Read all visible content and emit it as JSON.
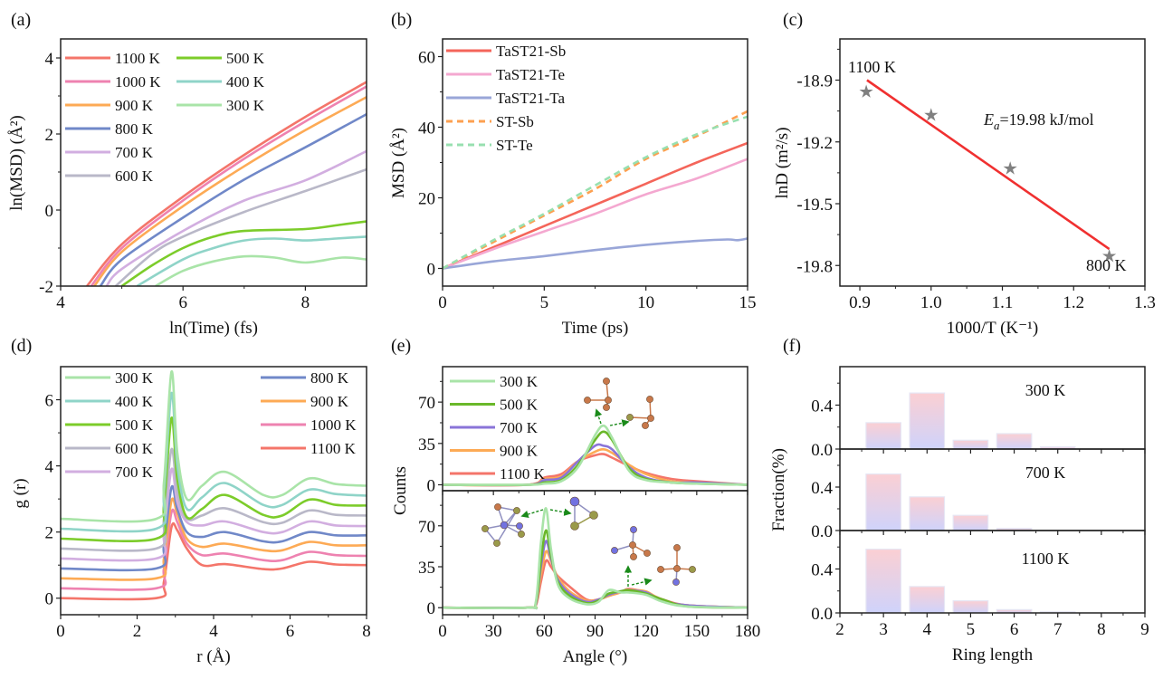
{
  "chart_data": [
    {
      "panel": "(a)",
      "type": "line",
      "xlabel": "ln(Time) (fs)",
      "ylabel": "ln(MSD) (Å²)",
      "xlim": [
        4,
        9
      ],
      "ylim": [
        -2,
        4.5
      ],
      "xticks": [
        4,
        6,
        8
      ],
      "xtick_labels": [
        "4",
        "6",
        "8"
      ],
      "yticks": [
        -2,
        0,
        2,
        4
      ],
      "ytick_labels": [
        "-2",
        "0",
        "2",
        "4"
      ],
      "legend": "top-left, two columns",
      "series": [
        {
          "name": "1100 K",
          "color": "#f4756a",
          "x": [
            4.43,
            5,
            6,
            7,
            8,
            9
          ],
          "y": [
            -2,
            -0.9,
            0.35,
            1.45,
            2.45,
            3.37
          ]
        },
        {
          "name": "1000 K",
          "color": "#ee82b0",
          "x": [
            4.5,
            5,
            6,
            7,
            8,
            9
          ],
          "y": [
            -2,
            -1.0,
            0.25,
            1.35,
            2.33,
            3.25
          ]
        },
        {
          "name": "900 K",
          "color": "#fdaa55",
          "x": [
            4.55,
            5,
            6,
            7,
            8,
            9
          ],
          "y": [
            -2,
            -1.1,
            0.1,
            1.15,
            2.1,
            2.97
          ]
        },
        {
          "name": "800 K",
          "color": "#7088c8",
          "x": [
            4.65,
            5,
            6,
            7,
            8,
            9
          ],
          "y": [
            -2,
            -1.3,
            -0.2,
            0.8,
            1.65,
            2.52
          ]
        },
        {
          "name": "700 K",
          "color": "#d2aee0",
          "x": [
            4.75,
            5,
            6,
            7,
            8,
            9
          ],
          "y": [
            -2,
            -1.55,
            -0.55,
            0.25,
            0.78,
            1.55
          ]
        },
        {
          "name": "600 K",
          "color": "#b9b8c8",
          "x": [
            4.9,
            5.5,
            6,
            7,
            8,
            9
          ],
          "y": [
            -2,
            -1.15,
            -0.7,
            -0.05,
            0.5,
            1.07
          ]
        },
        {
          "name": "500 K",
          "color": "#7ccc2a",
          "x": [
            5.0,
            5.5,
            6,
            6.5,
            7,
            8,
            8.6,
            9
          ],
          "y": [
            -2,
            -1.45,
            -1.0,
            -0.7,
            -0.55,
            -0.5,
            -0.38,
            -0.3
          ]
        },
        {
          "name": "400 K",
          "color": "#8fd4c8",
          "x": [
            5.25,
            6,
            6.5,
            7,
            7.5,
            8,
            8.5,
            9
          ],
          "y": [
            -2,
            -1.3,
            -1.0,
            -0.8,
            -0.75,
            -0.8,
            -0.75,
            -0.7
          ]
        },
        {
          "name": "300 K",
          "color": "#a9e4a8",
          "x": [
            5.55,
            6,
            6.5,
            7,
            7.5,
            8,
            8.6,
            9
          ],
          "y": [
            -2,
            -1.6,
            -1.35,
            -1.22,
            -1.25,
            -1.38,
            -1.25,
            -1.3
          ]
        }
      ]
    },
    {
      "panel": "(b)",
      "type": "line",
      "xlabel": "Time (ps)",
      "ylabel": "MSD (Å²)",
      "xlim": [
        0,
        15
      ],
      "ylim": [
        -5,
        65
      ],
      "xticks": [
        0,
        5,
        10,
        15
      ],
      "xtick_labels": [
        "0",
        "5",
        "10",
        "15"
      ],
      "yticks": [
        0,
        20,
        40,
        60
      ],
      "ytick_labels": [
        "0",
        "20",
        "40",
        "60"
      ],
      "legend": "top-left",
      "series": [
        {
          "name": "TaST21-Sb",
          "color": "#f4655a",
          "dashed": false,
          "x": [
            0,
            2.5,
            5,
            7.5,
            10,
            12.5,
            15
          ],
          "y": [
            0,
            6,
            12,
            18,
            24,
            30,
            35.5
          ]
        },
        {
          "name": "TaST21-Te",
          "color": "#f4a8d0",
          "dashed": false,
          "x": [
            0,
            2.5,
            5,
            7.5,
            10,
            12.5,
            15
          ],
          "y": [
            0,
            5.5,
            10.5,
            15.5,
            21,
            25.5,
            31
          ]
        },
        {
          "name": "TaST21-Ta",
          "color": "#99a6d8",
          "dashed": false,
          "x": [
            0,
            2.5,
            5,
            7.5,
            10,
            12.5,
            14,
            14.5,
            15
          ],
          "y": [
            0,
            2,
            3.5,
            5.2,
            6.7,
            7.8,
            8.2,
            8,
            8.5
          ]
        },
        {
          "name": "ST-Sb",
          "color": "#fda050",
          "dashed": true,
          "x": [
            0,
            2.5,
            5,
            7.5,
            10,
            12.5,
            15
          ],
          "y": [
            0,
            7.5,
            15,
            22.5,
            31,
            37.5,
            44.5
          ]
        },
        {
          "name": "ST-Te",
          "color": "#98e0b0",
          "dashed": true,
          "x": [
            0,
            2.5,
            5,
            7.5,
            10,
            12.5,
            15
          ],
          "y": [
            0,
            8,
            15.5,
            23.5,
            31.5,
            38,
            43
          ]
        }
      ]
    },
    {
      "panel": "(c)",
      "type": "scatter",
      "xlabel": "1000/T (K⁻¹)",
      "ylabel": "lnD (m²/s)",
      "xlim": [
        0.872,
        1.3
      ],
      "ylim": [
        -19.9,
        -18.7
      ],
      "xticks": [
        0.9,
        1.0,
        1.1,
        1.2,
        1.3
      ],
      "xtick_labels": [
        "0.9",
        "1.0",
        "1.1",
        "1.2",
        "1.3"
      ],
      "yticks": [
        -18.9,
        -19.2,
        -19.5,
        -19.8
      ],
      "ytick_labels": [
        "-18.9",
        "-19.2",
        "-19.5",
        "-19.8"
      ],
      "points": {
        "color": "#808080",
        "marker": "star",
        "x": [
          0.909,
          1.0,
          1.111,
          1.25
        ],
        "y": [
          -18.957,
          -19.07,
          -19.33,
          -19.755
        ]
      },
      "fit": {
        "color": "#f03030",
        "x": [
          0.91,
          1.25
        ],
        "y": [
          -18.9,
          -19.72
        ]
      },
      "annotations": {
        "high": "1100 K",
        "low": "800 K",
        "ea_symbol": "E",
        "ea_sub": "a",
        "ea_text": "=19.98 kJ/mol"
      }
    },
    {
      "panel": "(d)",
      "type": "line",
      "xlabel": "r (Å)",
      "ylabel": "g (r)",
      "xlim": [
        0,
        8
      ],
      "ylim": [
        -0.5,
        7
      ],
      "xticks": [
        0,
        2,
        4,
        6,
        8
      ],
      "xtick_labels": [
        "0",
        "2",
        "4",
        "6",
        "8"
      ],
      "yticks": [
        0,
        2,
        4,
        6
      ],
      "ytick_labels": [
        "0",
        "2",
        "4",
        "6"
      ],
      "legend": "top, two columns",
      "x": [
        0,
        2.5,
        2.7,
        2.9,
        3.05,
        3.3,
        3.7,
        4.3,
        5.3,
        5.8,
        6.5,
        7.2,
        8
      ],
      "series": [
        {
          "name": "300 K",
          "color": "#a9e4a8",
          "y": [
            2.4,
            2.4,
            3.5,
            6.85,
            4.4,
            3.0,
            3.4,
            3.82,
            3.12,
            3.12,
            3.62,
            3.45,
            3.4
          ]
        },
        {
          "name": "400 K",
          "color": "#8fd4c8",
          "y": [
            2.1,
            2.1,
            3.2,
            6.2,
            4.0,
            2.7,
            3.05,
            3.48,
            2.82,
            2.82,
            3.28,
            3.15,
            3.1
          ]
        },
        {
          "name": "500 K",
          "color": "#7ccc2a",
          "y": [
            1.8,
            1.8,
            2.8,
            5.45,
            3.6,
            2.45,
            2.7,
            3.12,
            2.52,
            2.5,
            2.98,
            2.82,
            2.8
          ]
        },
        {
          "name": "600 K",
          "color": "#b9b8c8",
          "y": [
            1.5,
            1.5,
            2.4,
            4.5,
            3.2,
            2.4,
            2.5,
            2.72,
            2.3,
            2.28,
            2.65,
            2.52,
            2.5
          ]
        },
        {
          "name": "700 K",
          "color": "#d2aee0",
          "y": [
            1.2,
            1.2,
            2.0,
            3.9,
            2.9,
            2.3,
            2.2,
            2.32,
            2.0,
            2.0,
            2.32,
            2.2,
            2.18
          ]
        },
        {
          "name": "800 K",
          "color": "#7088c8",
          "y": [
            0.9,
            0.9,
            1.6,
            3.35,
            2.7,
            2.0,
            1.85,
            2.0,
            1.72,
            1.72,
            2.0,
            1.9,
            1.9
          ]
        },
        {
          "name": "900 K",
          "color": "#fdaa55",
          "y": [
            0.6,
            0.6,
            1.2,
            2.95,
            2.55,
            1.8,
            1.55,
            1.65,
            1.45,
            1.45,
            1.7,
            1.6,
            1.6
          ]
        },
        {
          "name": "1000 K",
          "color": "#ee82b0",
          "y": [
            0.3,
            0.3,
            0.9,
            2.6,
            2.3,
            1.65,
            1.3,
            1.35,
            1.15,
            1.15,
            1.4,
            1.3,
            1.28
          ]
        },
        {
          "name": "1100 K",
          "color": "#f4756a",
          "y": [
            0,
            0,
            0.5,
            2.15,
            2.05,
            1.5,
            1.0,
            1.03,
            0.88,
            0.9,
            1.1,
            1.02,
            1.0
          ]
        }
      ]
    },
    {
      "panel": "(e)",
      "type": "line",
      "xlabel": "Angle (°)",
      "ylabel": "Counts",
      "xlim": [
        0,
        180
      ],
      "xticks": [
        0,
        30,
        60,
        90,
        120,
        150,
        180
      ],
      "xtick_labels": [
        "0",
        "30",
        "60",
        "90",
        "120",
        "150",
        "180"
      ],
      "legend": "top-left of upper subplot",
      "legend_entries": [
        {
          "name": "300 K",
          "color": "#a9e4a8"
        },
        {
          "name": "500 K",
          "color": "#6ab82a"
        },
        {
          "name": "700 K",
          "color": "#8a74d8"
        },
        {
          "name": "900 K",
          "color": "#fdaa55"
        },
        {
          "name": "1100 K",
          "color": "#f4756a"
        }
      ],
      "subplots": [
        {
          "ylim": [
            -5,
            100
          ],
          "yticks": [
            0,
            35,
            70
          ],
          "ytick_labels": [
            "0",
            "35",
            "70"
          ],
          "x": [
            0,
            50,
            60,
            70,
            80,
            90,
            95,
            100,
            110,
            120,
            135,
            150,
            180
          ],
          "series": [
            {
              "name": "1100 K",
              "color": "#f4756a",
              "y": [
                0,
                0,
                6,
                9,
                20,
                25,
                26,
                23,
                16,
                10,
                5,
                3,
                0
              ]
            },
            {
              "name": "900 K",
              "color": "#fdaa55",
              "y": [
                0,
                0,
                5,
                7,
                20,
                28,
                30,
                27,
                17,
                9,
                3,
                2,
                0
              ]
            },
            {
              "name": "700 K",
              "color": "#8a74d8",
              "y": [
                0,
                0,
                4,
                6,
                20,
                33,
                33,
                30,
                15,
                6,
                2,
                2,
                0
              ]
            },
            {
              "name": "500 K",
              "color": "#6ab82a",
              "y": [
                0,
                0,
                2,
                4,
                17,
                38,
                45,
                38,
                14,
                5,
                2,
                1,
                0
              ]
            },
            {
              "name": "300 K",
              "color": "#a9e4a8",
              "y": [
                0,
                0,
                1,
                3,
                15,
                42,
                50,
                40,
                12,
                4,
                2,
                1,
                0
              ]
            }
          ]
        },
        {
          "ylim": [
            -6,
            100
          ],
          "yticks": [
            0,
            35,
            70
          ],
          "ytick_labels": [
            "0",
            "35",
            "70"
          ],
          "x": [
            0,
            50,
            55,
            58,
            61,
            64,
            68,
            75,
            85,
            92,
            98,
            105,
            110,
            120,
            130,
            145,
            180
          ],
          "series": [
            {
              "name": "1100 K",
              "color": "#f4756a",
              "y": [
                0,
                0,
                2,
                22,
                40,
                35,
                27,
                18,
                7,
                7,
                10,
                13,
                16,
                13,
                7,
                2,
                0
              ]
            },
            {
              "name": "900 K",
              "color": "#fdaa55",
              "y": [
                0,
                0,
                3,
                28,
                48,
                40,
                26,
                14,
                6,
                7,
                10,
                13,
                15,
                14,
                6,
                2,
                0
              ]
            },
            {
              "name": "700 K",
              "color": "#8a74d8",
              "y": [
                0,
                0,
                3,
                35,
                57,
                42,
                24,
                12,
                5,
                7,
                11,
                14,
                15,
                13,
                6,
                2,
                0
              ]
            },
            {
              "name": "500 K",
              "color": "#6ab82a",
              "y": [
                0,
                0,
                4,
                40,
                66,
                45,
                22,
                10,
                4,
                6,
                12,
                14,
                15,
                12,
                7,
                1,
                0
              ]
            },
            {
              "name": "300 K",
              "color": "#a9e4a8",
              "y": [
                0,
                0,
                5,
                55,
                85,
                50,
                20,
                8,
                3,
                5,
                15,
                13,
                13,
                11,
                5,
                1,
                0
              ]
            }
          ]
        }
      ],
      "insets": [
        "atomic-cluster-icon",
        "atomic-triangle-icon",
        "atomic-tetrahedral-icon"
      ]
    },
    {
      "panel": "(f)",
      "type": "bar",
      "xlabel": "Ring length",
      "ylabel": "Fraction(%)",
      "xlim": [
        2,
        9
      ],
      "xticks": [
        2,
        3,
        4,
        5,
        6,
        7,
        8,
        9
      ],
      "xtick_labels": [
        "2",
        "3",
        "4",
        "5",
        "6",
        "7",
        "8",
        "9"
      ],
      "categories": [
        3,
        4,
        5,
        6,
        7
      ],
      "bar_colors": {
        "top": "#fbcfd3",
        "bottom": "#cfd3fb"
      },
      "subplots": [
        {
          "label": "300 K",
          "ylim": [
            0,
            0.75
          ],
          "yticks": [
            0,
            0.4
          ],
          "ytick_labels": [
            "0.0",
            "0.4"
          ],
          "values": [
            0.24,
            0.51,
            0.08,
            0.14,
            0.02
          ]
        },
        {
          "label": "700 K",
          "ylim": [
            0,
            0.75
          ],
          "yticks": [
            0,
            0.4
          ],
          "ytick_labels": [
            "0.0",
            "0.4"
          ],
          "values": [
            0.52,
            0.31,
            0.14,
            0.02,
            0
          ]
        },
        {
          "label": "1100 K",
          "ylim": [
            0,
            0.75
          ],
          "yticks": [
            0,
            0.4
          ],
          "ytick_labels": [
            "0.0",
            "0.4"
          ],
          "values": [
            0.58,
            0.24,
            0.11,
            0.03,
            0.01
          ]
        }
      ]
    }
  ]
}
